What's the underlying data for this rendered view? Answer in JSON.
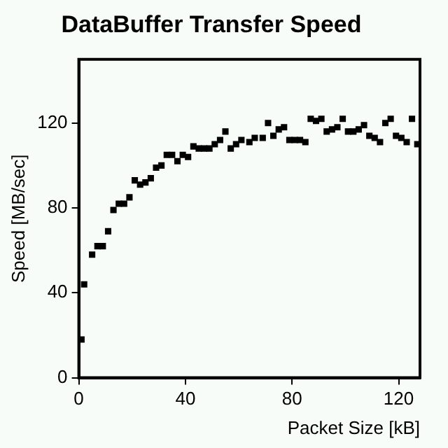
{
  "chart_data": {
    "type": "scatter",
    "title": "DataBuffer Transfer Speed",
    "xlabel": "Packet Size [kB]",
    "ylabel": "Speed [MB/sec]",
    "x": [
      1,
      2,
      5,
      7,
      9,
      11,
      13,
      15,
      17,
      19,
      21,
      23,
      25,
      27,
      29,
      31,
      33,
      35,
      37,
      39,
      41,
      43,
      45,
      47,
      49,
      51,
      53,
      55,
      57,
      59,
      61,
      64,
      66,
      69,
      71,
      73,
      75,
      77,
      79,
      81,
      83,
      85,
      87,
      89,
      91,
      93,
      95,
      97,
      99,
      101,
      103,
      105,
      107,
      109,
      111,
      113,
      115,
      117,
      119,
      121,
      123,
      125,
      127
    ],
    "series": [
      {
        "color": "#000000",
        "values": [
          18,
          44,
          58,
          62,
          62,
          69,
          79,
          82,
          82,
          85,
          93,
          91,
          92,
          94,
          99,
          100,
          105,
          105,
          102,
          105,
          104,
          109,
          108,
          108,
          108,
          110,
          112,
          116,
          108,
          110,
          112,
          111,
          113,
          113,
          120,
          114,
          117,
          118,
          112,
          112,
          112,
          111,
          122,
          121,
          122,
          116,
          117,
          118,
          122,
          116,
          116,
          117,
          119,
          114,
          113,
          111,
          120,
          122,
          114,
          113,
          111,
          122,
          110
        ]
      }
    ],
    "xlim": [
      0,
      128
    ],
    "xticks": [
      0,
      40,
      80,
      120
    ],
    "ylim": [
      0,
      150
    ],
    "yticks": [
      0,
      40,
      80,
      120
    ],
    "grid": false,
    "legend": false,
    "marker": "square"
  }
}
